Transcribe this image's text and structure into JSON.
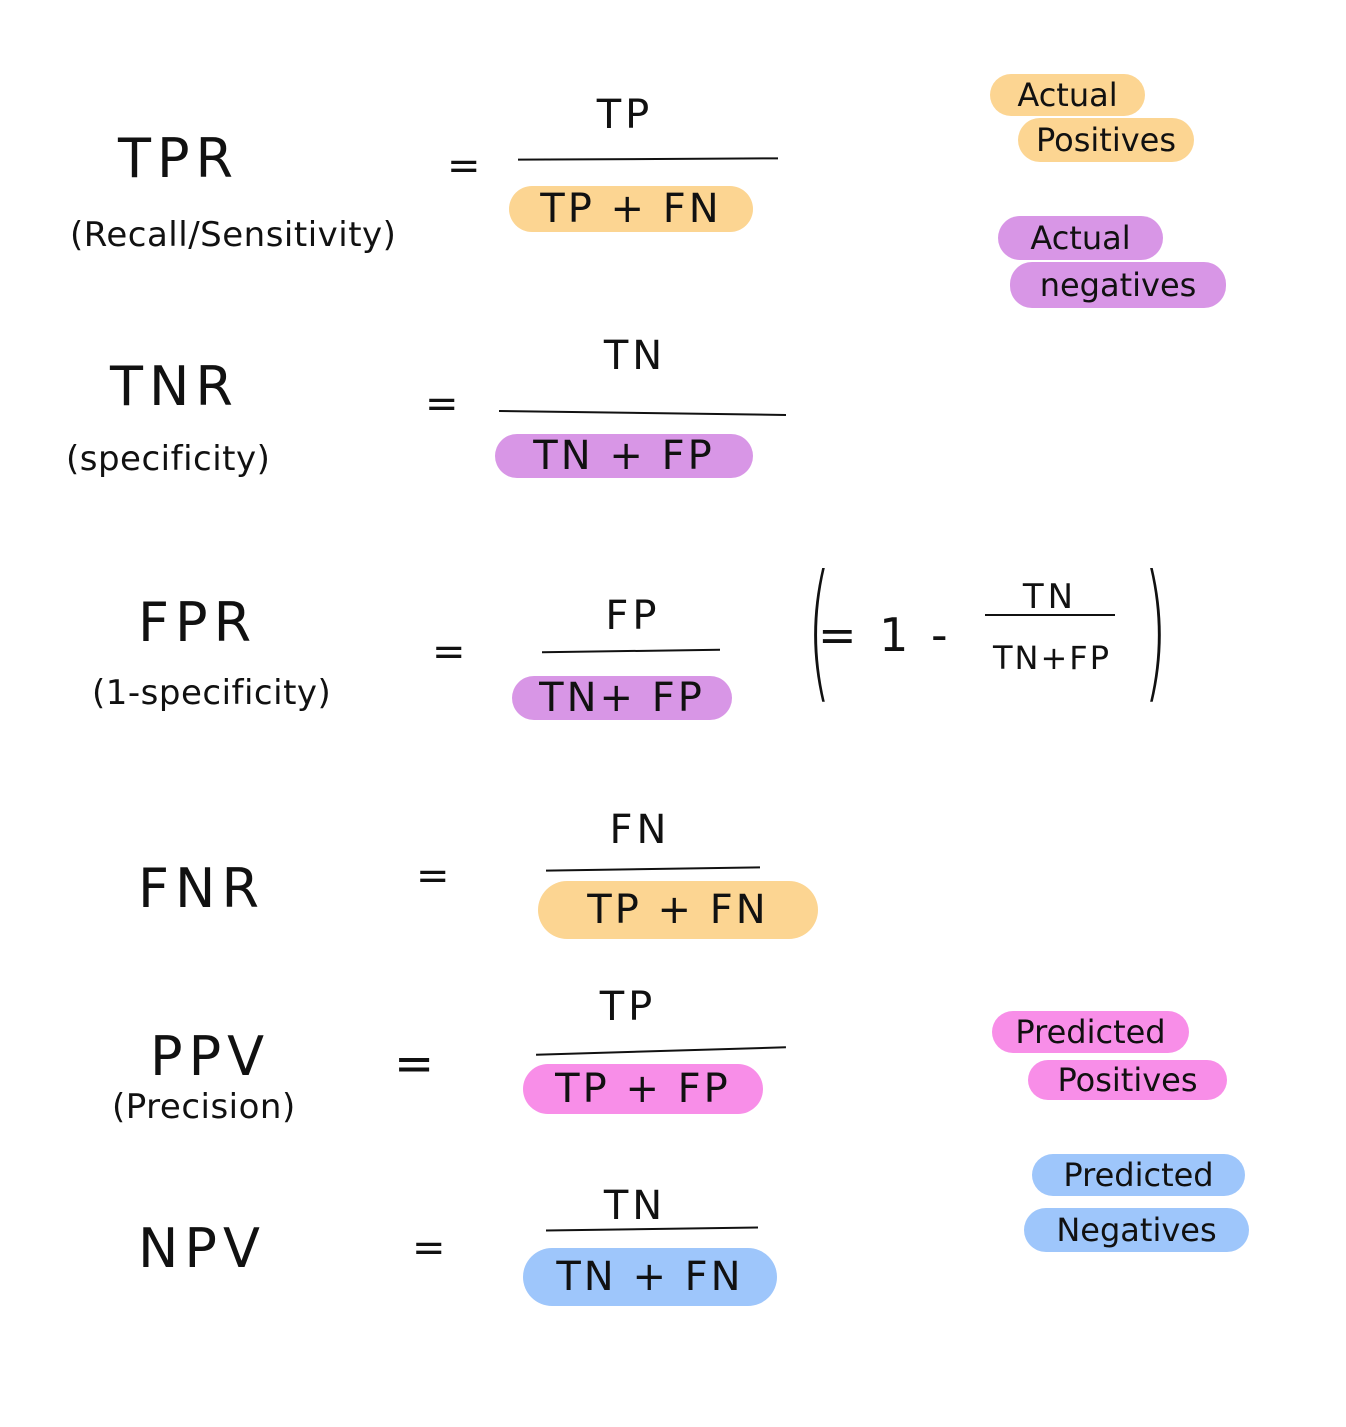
{
  "colors": {
    "actual_positives": "#fcd592",
    "actual_negatives": "#d896e6",
    "predicted_positives": "#f88ee8",
    "predicted_negatives": "#9ec6fb",
    "ink": "#111111"
  },
  "legend": {
    "actual_positives": [
      "Actual",
      "Positives"
    ],
    "actual_negatives": [
      "Actual",
      "negatives"
    ],
    "predicted_positives": [
      "Predicted",
      "Positives"
    ],
    "predicted_negatives": [
      "Predicted",
      "Negatives"
    ]
  },
  "formulas": [
    {
      "name": "TPR",
      "alias": "(Recall/Sensitivity)",
      "equals": "=",
      "numerator": "TP",
      "denominator": "TP + FN",
      "denominator_highlight": "actual_positives"
    },
    {
      "name": "TNR",
      "alias": "(specificity)",
      "equals": "=",
      "numerator": "TN",
      "denominator": "TN + FP",
      "denominator_highlight": "actual_negatives"
    },
    {
      "name": "FPR",
      "alias": "(1-specificity)",
      "equals": "=",
      "numerator": "FP",
      "denominator": "TN+ FP",
      "denominator_highlight": "actual_negatives",
      "note": {
        "prefix": "= 1 -",
        "numerator": "TN",
        "denominator": "TN+FP"
      }
    },
    {
      "name": "FNR",
      "alias": "",
      "equals": "=",
      "numerator": "FN",
      "denominator": "TP + FN",
      "denominator_highlight": "actual_positives"
    },
    {
      "name": "PPV",
      "alias": "(Precision)",
      "equals": "=",
      "numerator": "TP",
      "denominator": "TP + FP",
      "denominator_highlight": "predicted_positives"
    },
    {
      "name": "NPV",
      "alias": "",
      "equals": "=",
      "numerator": "TN",
      "denominator": "TN + FN",
      "denominator_highlight": "predicted_negatives"
    }
  ]
}
